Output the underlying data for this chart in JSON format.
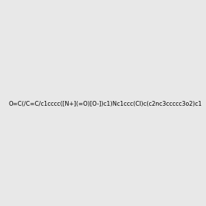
{
  "smiles": "O=C(/C=C/c1cccc([N+](=O)[O-])c1)Nc1ccc(Cl)c(c2nc3ccccc3o2)c1",
  "image_size": 300,
  "background_color": "#e8e8e8",
  "title": ""
}
